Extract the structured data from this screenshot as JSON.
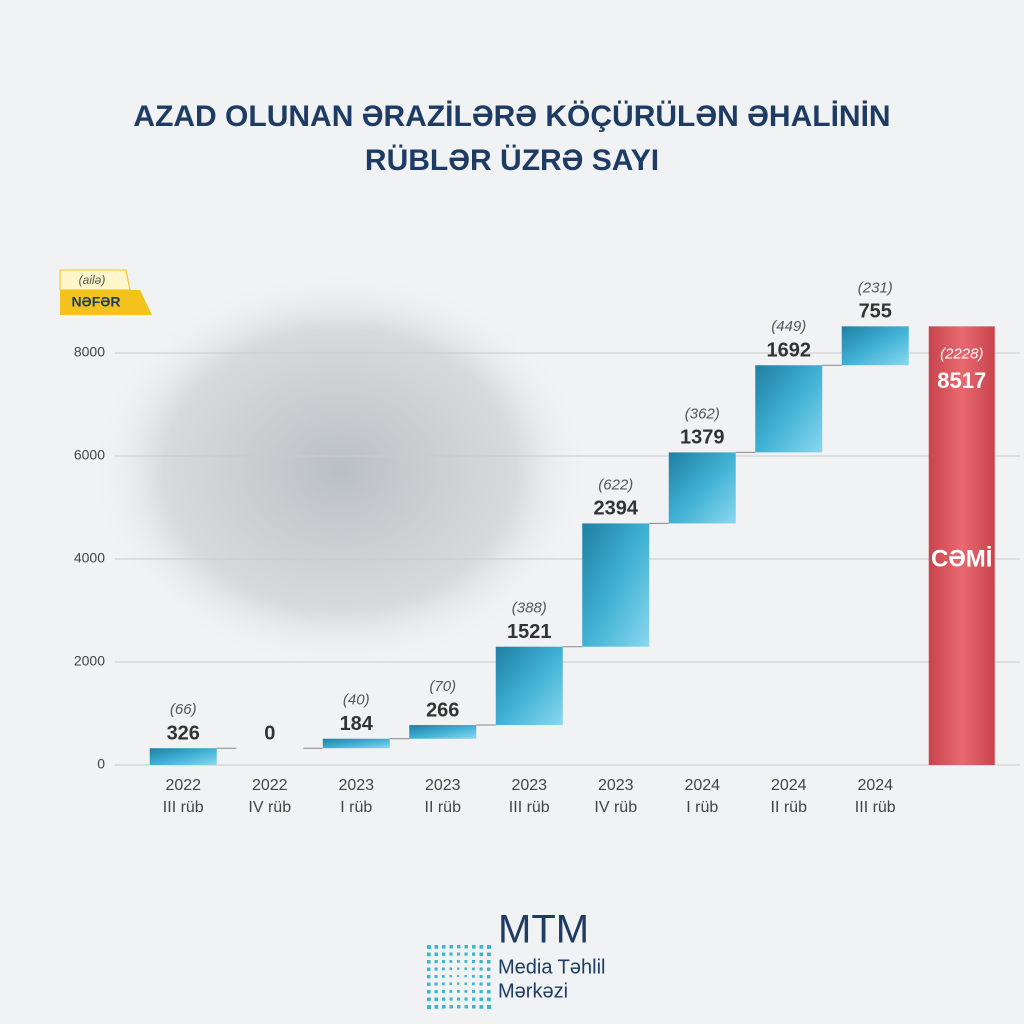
{
  "chart_data": {
    "type": "waterfall",
    "title": "AZAD OLUNAN ƏRAZİLƏRƏ KÖÇÜRÜLƏN ƏHALİNİN\nRÜBLƏR ÜZRƏ SAYI",
    "categories": [
      [
        "2022",
        "III rüb"
      ],
      [
        "2022",
        "IV rüb"
      ],
      [
        "2023",
        "I rüb"
      ],
      [
        "2023",
        "II rüb"
      ],
      [
        "2023",
        "III rüb"
      ],
      [
        "2023",
        "IV rüb"
      ],
      [
        "2024",
        "I rüb"
      ],
      [
        "2024",
        "II rüb"
      ],
      [
        "2024",
        "III rüb"
      ]
    ],
    "series": [
      {
        "name": "NƏFƏR",
        "color": "#2f9dc0",
        "values": [
          326,
          0,
          184,
          266,
          1521,
          2394,
          1379,
          1692,
          755
        ]
      },
      {
        "name": "(ailə)",
        "values": [
          66,
          null,
          40,
          70,
          388,
          622,
          362,
          449,
          231
        ],
        "value_labels": [
          "(66)",
          null,
          "(40)",
          "(70)",
          "(388)",
          "(622)",
          "(362)",
          "(449)",
          "(231)"
        ]
      }
    ],
    "total": {
      "label": "CƏMİ",
      "value": 8517,
      "families": 2228,
      "families_label": "(2228)",
      "color": "#d9525a"
    },
    "ylim": [
      0,
      9000
    ],
    "yticks": [
      0,
      2000,
      4000,
      6000,
      8000
    ],
    "grid": true
  },
  "logo": {
    "name": "MTM",
    "line1": "Media Təhlil",
    "line2": "Mərkəzi"
  }
}
